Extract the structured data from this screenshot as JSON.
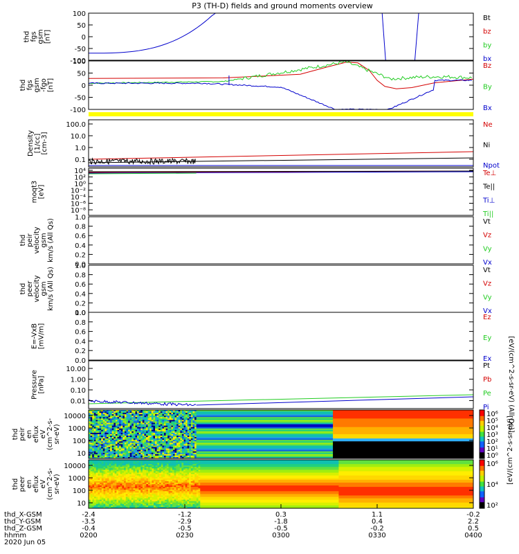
{
  "title": "P3 (TH-D) fields and ground moments overview",
  "colors": {
    "red": "#d40000",
    "green": "#22cc22",
    "blue": "#0000cc",
    "black": "#000000",
    "yellow": "#ffff00"
  },
  "chart_data": [
    {
      "id": "fgs",
      "type": "line",
      "ylabel": [
        "thd",
        "fgs",
        "gsm",
        "[nT]"
      ],
      "yticks": [
        "100",
        "50",
        "0",
        "-50",
        "-100"
      ],
      "ylim": [
        -100,
        100
      ],
      "legend": [
        {
          "label": "Bt",
          "color": "black"
        },
        {
          "label": "bz",
          "color": "red"
        },
        {
          "label": "by",
          "color": "green"
        },
        {
          "label": "bx",
          "color": "blue"
        }
      ]
    },
    {
      "id": "fgl",
      "type": "line",
      "ylabel": [
        "thd",
        "fgs",
        "gsm",
        "-fgo",
        "[nT]"
      ],
      "yticks": [
        "100",
        "50",
        "0",
        "-50",
        "-100"
      ],
      "ylim": [
        -100,
        100
      ],
      "legend": [
        {
          "label": "Bz",
          "color": "red"
        },
        {
          "label": "By",
          "color": "green"
        },
        {
          "label": "Bx",
          "color": "blue"
        }
      ]
    },
    {
      "id": "density",
      "type": "line",
      "ylabel": [
        "Density",
        "[1/cc]",
        "[cm-3]"
      ],
      "yticks": [
        "100.0",
        "10.0",
        "1.0",
        "0.1"
      ],
      "scale": "log",
      "legend": [
        {
          "label": "Ne",
          "color": "red"
        },
        {
          "label": "Ni",
          "color": "black"
        },
        {
          "label": "Npot",
          "color": "blue"
        }
      ]
    },
    {
      "id": "temp",
      "type": "line",
      "ylabel": [
        "moqt3",
        "[eV]"
      ],
      "yticks": [
        "10⁴",
        "10²",
        "10⁰",
        "10⁻²",
        "10⁻⁴",
        "10⁻⁶",
        "10⁻⁸"
      ],
      "scale": "log",
      "legend": [
        {
          "label": "Te⊥",
          "color": "red"
        },
        {
          "label": "Te||",
          "color": "black"
        },
        {
          "label": "Ti⊥",
          "color": "blue"
        },
        {
          "label": "Ti||",
          "color": "green"
        }
      ]
    },
    {
      "id": "peir_v",
      "type": "line",
      "ylabel": [
        "thd",
        "peir",
        "velocity",
        "gsm",
        "km/s (All Qs)"
      ],
      "yticks": [
        "1.0",
        "0.8",
        "0.6",
        "0.4",
        "0.2",
        "0.0"
      ],
      "ylim": [
        0,
        1
      ],
      "legend": [
        {
          "label": "Vt",
          "color": "black"
        },
        {
          "label": "Vz",
          "color": "red"
        },
        {
          "label": "Vy",
          "color": "green"
        },
        {
          "label": "Vx",
          "color": "blue"
        }
      ]
    },
    {
      "id": "peer_v",
      "type": "line",
      "ylabel": [
        "thd",
        "peer",
        "velocity",
        "gsm",
        "km/s (All Qs)"
      ],
      "yticks": [
        "1.0",
        "0.8",
        "0.6",
        "0.4",
        "0.2",
        "0.0"
      ],
      "ylim": [
        0,
        1
      ],
      "legend": [
        {
          "label": "Vt",
          "color": "black"
        },
        {
          "label": "Vz",
          "color": "red"
        },
        {
          "label": "Vy",
          "color": "green"
        },
        {
          "label": "Vx",
          "color": "blue"
        }
      ]
    },
    {
      "id": "efield",
      "type": "line",
      "ylabel": [
        "E=-VxB",
        "[mV/m]"
      ],
      "yticks": [
        "1.0",
        "0.8",
        "0.6",
        "0.4",
        "0.2",
        "0.0"
      ],
      "ylim": [
        0,
        1
      ],
      "legend": [
        {
          "label": "Ez",
          "color": "red"
        },
        {
          "label": "Ey",
          "color": "green"
        },
        {
          "label": "Ex",
          "color": "blue"
        }
      ]
    },
    {
      "id": "pressure",
      "type": "line",
      "ylabel": [
        "Pressure",
        "[nPa]"
      ],
      "yticks": [
        "10.00",
        "1.00",
        "0.10",
        "0.01"
      ],
      "scale": "log",
      "legend": [
        {
          "label": "Pt",
          "color": "black"
        },
        {
          "label": "Pb",
          "color": "red"
        },
        {
          "label": "Pe",
          "color": "green"
        },
        {
          "label": "Pi",
          "color": "blue"
        }
      ]
    },
    {
      "id": "peir_spec",
      "type": "heatmap",
      "ylabel": [
        "thd",
        "peir",
        "en",
        "eflux",
        "eV",
        "(cm^2-s-",
        "sr-eV)"
      ],
      "yticks": [
        "10000",
        "1000",
        "100",
        "10"
      ],
      "scale": "log"
    },
    {
      "id": "peer_spec",
      "type": "heatmap",
      "ylabel": [
        "thd",
        "peer",
        "en",
        "eflux",
        "eV",
        "(cm^2-s-",
        "sr-eV)"
      ],
      "yticks": [
        "10000",
        "1000",
        "100",
        "10"
      ],
      "scale": "log"
    }
  ],
  "right_labels": {
    "pressure_units": "[eV/(cm^2-s-sr-eV) (All Qs)]",
    "spec_units": "[eV/(cm^2-s-sr-eV)]"
  },
  "colorbar": {
    "ticks": [
      "10⁶",
      "10⁵",
      "10⁴",
      "10³",
      "10²",
      "10¹",
      "10⁰"
    ],
    "ticks2": [
      "10⁶",
      "10⁴",
      "10²"
    ]
  },
  "xaxis": {
    "labels": [
      "thd_X-GSM",
      "thd_Y-GSM",
      "thd_Z-GSM",
      "hhmm",
      "2020 Jun 05"
    ],
    "ticks": [
      {
        "x": "-2.4",
        "y": "-3.5",
        "z": "-0.4",
        "t": "0200"
      },
      {
        "x": "-1.2",
        "y": "-2.9",
        "z": "-0.5",
        "t": "0230"
      },
      {
        "x": "0.3",
        "y": "-1.8",
        "z": "-0.5",
        "t": "0300"
      },
      {
        "x": "1.1",
        "y": "0.4",
        "z": "-0.2",
        "t": "0330"
      },
      {
        "x": "-0.2",
        "y": "2.2",
        "z": "0.5",
        "t": "0400"
      }
    ]
  }
}
